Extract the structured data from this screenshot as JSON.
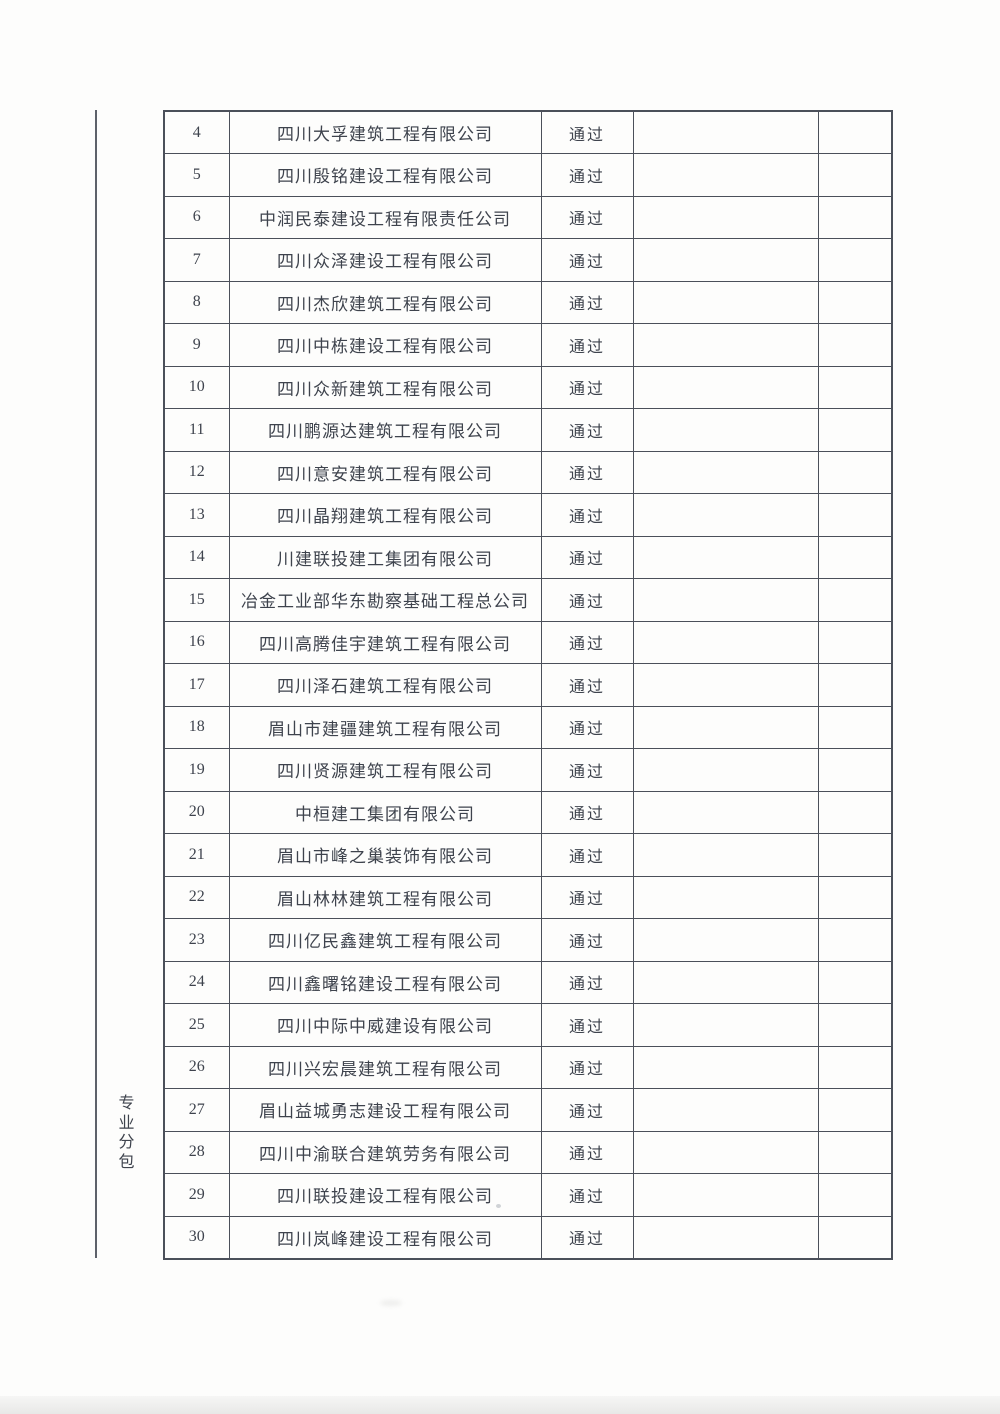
{
  "page": {
    "category_label": "专业分包"
  },
  "colors": {
    "border": "#4b505a",
    "text": "#3e434d",
    "paper": "#fdfdfc"
  },
  "table": {
    "rows": [
      {
        "no": "4",
        "company": "四川大孚建筑工程有限公司",
        "status": "通过"
      },
      {
        "no": "5",
        "company": "四川殷铭建设工程有限公司",
        "status": "通过"
      },
      {
        "no": "6",
        "company": "中润民泰建设工程有限责任公司",
        "status": "通过"
      },
      {
        "no": "7",
        "company": "四川众泽建设工程有限公司",
        "status": "通过"
      },
      {
        "no": "8",
        "company": "四川杰欣建筑工程有限公司",
        "status": "通过"
      },
      {
        "no": "9",
        "company": "四川中栋建设工程有限公司",
        "status": "通过"
      },
      {
        "no": "10",
        "company": "四川众新建筑工程有限公司",
        "status": "通过"
      },
      {
        "no": "11",
        "company": "四川鹏源达建筑工程有限公司",
        "status": "通过"
      },
      {
        "no": "12",
        "company": "四川意安建筑工程有限公司",
        "status": "通过"
      },
      {
        "no": "13",
        "company": "四川晶翔建筑工程有限公司",
        "status": "通过"
      },
      {
        "no": "14",
        "company": "川建联投建工集团有限公司",
        "status": "通过"
      },
      {
        "no": "15",
        "company": "冶金工业部华东勘察基础工程总公司",
        "status": "通过"
      },
      {
        "no": "16",
        "company": "四川高腾佳宇建筑工程有限公司",
        "status": "通过"
      },
      {
        "no": "17",
        "company": "四川泽石建筑工程有限公司",
        "status": "通过"
      },
      {
        "no": "18",
        "company": "眉山市建疆建筑工程有限公司",
        "status": "通过"
      },
      {
        "no": "19",
        "company": "四川贤源建筑工程有限公司",
        "status": "通过"
      },
      {
        "no": "20",
        "company": "中桓建工集团有限公司",
        "status": "通过"
      },
      {
        "no": "21",
        "company": "眉山市峰之巢装饰有限公司",
        "status": "通过"
      },
      {
        "no": "22",
        "company": "眉山林林建筑工程有限公司",
        "status": "通过"
      },
      {
        "no": "23",
        "company": "四川亿民鑫建筑工程有限公司",
        "status": "通过"
      },
      {
        "no": "24",
        "company": "四川鑫曙铭建设工程有限公司",
        "status": "通过"
      },
      {
        "no": "25",
        "company": "四川中际中威建设有限公司",
        "status": "通过"
      },
      {
        "no": "26",
        "company": "四川兴宏晨建筑工程有限公司",
        "status": "通过"
      },
      {
        "no": "27",
        "company": "眉山益城勇志建设工程有限公司",
        "status": "通过"
      },
      {
        "no": "28",
        "company": "四川中渝联合建筑劳务有限公司",
        "status": "通过"
      },
      {
        "no": "29",
        "company": "四川联投建设工程有限公司",
        "status": "通过"
      },
      {
        "no": "30",
        "company": "四川岚峰建设工程有限公司",
        "status": "通过"
      }
    ]
  }
}
